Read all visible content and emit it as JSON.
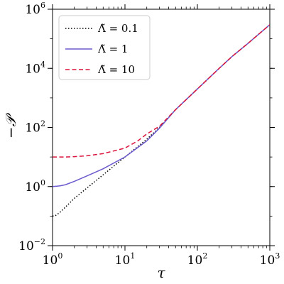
{
  "chart_data": {
    "type": "line",
    "title": "",
    "xlabel": "τ",
    "ylabel": "−𝒫",
    "xscale": "log",
    "yscale": "log",
    "xlim": [
      1,
      1000
    ],
    "ylim": [
      0.01,
      1000000
    ],
    "grid": false,
    "legend_position": "top-left",
    "x_ticks": [
      {
        "base": "10",
        "exp": "0",
        "value": 1
      },
      {
        "base": "10",
        "exp": "1",
        "value": 10
      },
      {
        "base": "10",
        "exp": "2",
        "value": 100
      },
      {
        "base": "10",
        "exp": "3",
        "value": 1000
      }
    ],
    "y_ticks": [
      {
        "base": "10",
        "exp": "−2",
        "value": 0.01
      },
      {
        "base": "10",
        "exp": "0",
        "value": 1
      },
      {
        "base": "10",
        "exp": "2",
        "value": 100
      },
      {
        "base": "10",
        "exp": "4",
        "value": 10000
      },
      {
        "base": "10",
        "exp": "6",
        "value": 1000000
      }
    ],
    "series": [
      {
        "name": "Λ̃ = 0.1",
        "color": "#000000",
        "style": "dotted",
        "x": [
          1,
          1.1,
          1.25,
          1.5,
          2,
          3,
          5,
          10,
          20,
          30,
          50,
          100,
          200,
          300,
          500,
          1000
        ],
        "y": [
          0.1,
          0.105,
          0.13,
          0.2,
          0.4,
          0.9,
          2.5,
          10,
          40,
          100,
          400,
          2000,
          10000,
          25000,
          70000,
          300000
        ]
      },
      {
        "name": "Λ̃ = 1",
        "color": "#6a5acd",
        "style": "solid",
        "x": [
          1,
          1.25,
          1.5,
          2,
          3,
          5,
          10,
          20,
          30,
          50,
          100,
          200,
          300,
          500,
          1000
        ],
        "y": [
          1,
          1.05,
          1.15,
          1.5,
          2.3,
          4,
          10,
          35,
          95,
          400,
          2000,
          10000,
          25000,
          70000,
          300000
        ]
      },
      {
        "name": "Λ̃ = 10",
        "color": "#dc143c",
        "style": "dashed",
        "x": [
          1,
          1.5,
          2,
          3,
          5,
          10,
          15,
          20,
          30,
          50,
          100,
          200,
          300,
          500,
          1000
        ],
        "y": [
          10,
          10,
          10.3,
          11,
          13,
          20,
          35,
          60,
          110,
          400,
          2000,
          10000,
          25000,
          70000,
          300000
        ]
      }
    ]
  }
}
